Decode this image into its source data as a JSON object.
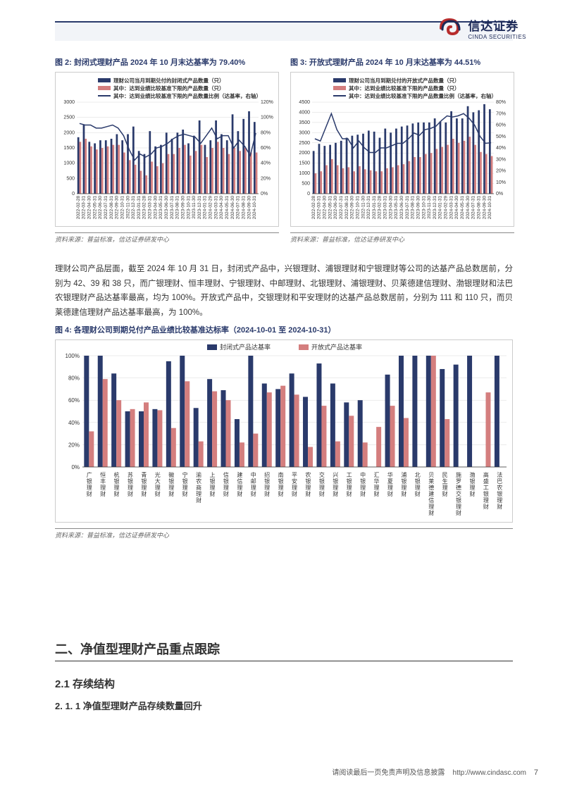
{
  "company": {
    "name_cn": "信达证券",
    "name_en": "CINDA SECURITIES"
  },
  "chart2": {
    "type": "bar-line-dual-axis",
    "title": "图 2: 封闭式理财产品 2024 年 10 月末达基率为 79.40%",
    "source": "资料来源：普益标准，信达证券研发中心",
    "legend": {
      "series1": "理财公司当月到期兑付的封闭式产品数量（只）",
      "series2": "其中：达到业绩比较基准下限的产品数量（只）",
      "series3": "其中：达到业绩比较基准下限的产品数量比例（达基率，右轴）"
    },
    "colors": {
      "bar1": "#2a3a6b",
      "bar2": "#d47e7e",
      "line": "#2a3a6b",
      "grid": "#d8d8d8",
      "axis_text": "#333333"
    },
    "y_left": {
      "min": 0,
      "max": 3000,
      "step": 500
    },
    "y_right": {
      "min": 0,
      "max": 120,
      "step": 20,
      "suffix": "%"
    },
    "x_labels": [
      "2022-02-28",
      "2022-03-31",
      "2022-04-30",
      "2022-05-31",
      "2022-06-30",
      "2022-07-31",
      "2022-08-31",
      "2022-09-30",
      "2022-10-31",
      "2022-11-30",
      "2022-12-31",
      "2023-01-31",
      "2023-02-28",
      "2023-03-31",
      "2023-04-30",
      "2023-05-31",
      "2023-06-30",
      "2023-07-31",
      "2023-08-31",
      "2023-09-30",
      "2023-10-31",
      "2023-11-30",
      "2023-12-31",
      "2024-01-31",
      "2024-02-29",
      "2024-03-31",
      "2024-04-30",
      "2024-05-31",
      "2024-06-30",
      "2024-07-31",
      "2024-08-31",
      "2024-09-30",
      "2024-10-31"
    ],
    "bar1_values": [
      1850,
      2250,
      1700,
      1650,
      1750,
      1750,
      1800,
      1950,
      1750,
      1950,
      2200,
      1400,
      1300,
      2050,
      1550,
      1600,
      2000,
      1800,
      2000,
      2100,
      1650,
      1900,
      2400,
      1600,
      1750,
      2400,
      1950,
      1750,
      2600,
      2050,
      2450,
      2700,
      2350
    ],
    "bar2_values": [
      1700,
      1800,
      1550,
      1450,
      1500,
      1550,
      1600,
      1600,
      1350,
      1100,
      950,
      750,
      600,
      1050,
      900,
      1000,
      1300,
      1300,
      1500,
      1600,
      1250,
      1400,
      1600,
      1200,
      1500,
      1700,
      1500,
      1300,
      1500,
      1400,
      1500,
      1350,
      1350
    ],
    "line_values": [
      92,
      90,
      90,
      86,
      86,
      88,
      90,
      86,
      76,
      58,
      44,
      52,
      48,
      52,
      60,
      62,
      66,
      72,
      76,
      78,
      76,
      74,
      66,
      76,
      86,
      72,
      76,
      76,
      60,
      70,
      62,
      50,
      79.4
    ],
    "font_size_axis": 7,
    "font_size_legend": 7.5,
    "bar_width": 0.35
  },
  "chart3": {
    "type": "bar-line-dual-axis",
    "title": "图 3: 开放式理财产品 2024 年 10 月末达基率为 44.51%",
    "source": "资料来源：普益标准，信达证券研发中心",
    "legend": {
      "series1": "理财公司当月到期兑付的开放式产品数量（只）",
      "series2": "其中：达到业绩比较基准下限的产品数量（只）",
      "series3": "其中：达到业绩比较基准下限的产品数量比例（达基率，右轴）"
    },
    "colors": {
      "bar1": "#2a3a6b",
      "bar2": "#d47e7e",
      "line": "#2a3a6b",
      "grid": "#d8d8d8",
      "axis_text": "#333333"
    },
    "y_left": {
      "min": 0,
      "max": 4500,
      "step": 500
    },
    "y_right": {
      "min": 0,
      "max": 80,
      "step": 10,
      "suffix": "%"
    },
    "x_labels": [
      "2022-02-28",
      "2022-03-31",
      "2022-04-30",
      "2022-05-31",
      "2022-06-30",
      "2022-07-31",
      "2022-08-31",
      "2022-09-30",
      "2022-10-31",
      "2022-11-30",
      "2022-12-31",
      "2023-01-31",
      "2023-02-28",
      "2023-03-31",
      "2023-04-30",
      "2023-05-31",
      "2023-06-30",
      "2023-07-31",
      "2023-08-31",
      "2023-09-30",
      "2023-10-31",
      "2023-11-30",
      "2023-12-31",
      "2024-01-31",
      "2024-02-29",
      "2024-03-31",
      "2024-04-30",
      "2024-05-31",
      "2024-06-30",
      "2024-07-31",
      "2024-08-31",
      "2024-09-30",
      "2024-10-31"
    ],
    "bar1_values": [
      2100,
      2450,
      2350,
      2400,
      2500,
      2600,
      2750,
      2850,
      2900,
      2950,
      3100,
      3050,
      2750,
      3200,
      3000,
      3200,
      3300,
      3350,
      3450,
      3500,
      3500,
      3500,
      3700,
      3550,
      3500,
      4050,
      3700,
      3700,
      4300,
      4000,
      4100,
      4400,
      4150
    ],
    "bar2_values": [
      1000,
      1100,
      1400,
      1700,
      1400,
      1250,
      1300,
      1100,
      1350,
      1200,
      1150,
      1100,
      1100,
      1250,
      1300,
      1400,
      1450,
      1600,
      1800,
      1800,
      1950,
      2000,
      2200,
      2300,
      2400,
      2700,
      2500,
      2600,
      2800,
      2400,
      2050,
      1950,
      1850
    ],
    "line_values": [
      48,
      46,
      58,
      70,
      56,
      48,
      48,
      40,
      46,
      40,
      36,
      36,
      40,
      40,
      42,
      44,
      44,
      48,
      53,
      51,
      56,
      57,
      59,
      64,
      68,
      67,
      68,
      70,
      66,
      60,
      50,
      44,
      44.51
    ],
    "font_size_axis": 7,
    "font_size_legend": 7.5,
    "bar_width": 0.35
  },
  "paragraph1": "理财公司产品层面，截至 2024 年 10 月 31 日，封闭式产品中，兴银理财、浦银理财和宁银理财等公司的达基产品总数居前，分别为 42、39 和 38 只，而广银理财、恒丰理财、宁银理财、中邮理财、北银理财、浦银理财、贝莱德建信理财、渤银理财和法巴农银理财产品达基率最高，均为 100%。开放式产品中，交银理财和平安理财的达基产品总数居前，分别为 111 和 110 只，而贝莱德建信理财产品达基率最高，为 100%。",
  "chart4": {
    "type": "grouped-bar",
    "title": "图 4: 各理财公司到期兑付产品业绩比较基准达标率（2024-10-01 至 2024-10-31）",
    "source": "资料来源：普益标准，信达证券研发中心",
    "legend": {
      "series1": "封闭式产品达基率",
      "series2": "开放式产品达基率"
    },
    "colors": {
      "bar1": "#2a3a6b",
      "bar2": "#d47e7e",
      "grid": "#d8d8d8",
      "axis_text": "#333333"
    },
    "y": {
      "min": 0,
      "max": 100,
      "step": 20,
      "suffix": "%"
    },
    "x_labels": [
      "广银理财",
      "恒丰理财",
      "杭银理财",
      "苏银理财",
      "青银理财",
      "光大理财",
      "徽银理财",
      "宁银理财",
      "渝农商理财",
      "上银理财",
      "信银理财",
      "建信理财",
      "中邮理财",
      "招银理财",
      "南银理财",
      "平安理财",
      "农银理财",
      "交银理财",
      "兴银理财",
      "工银理财",
      "中银理财",
      "汇华理财",
      "华夏理财",
      "浦银理财",
      "北银理财",
      "贝莱德建信理财",
      "民生理财",
      "施罗德交银理财",
      "渤银理财",
      "高盛工银理财",
      "法巴农银理财"
    ],
    "bar1_values": [
      100,
      100,
      84,
      50,
      50,
      52,
      95,
      100,
      53,
      79,
      69,
      43,
      100,
      75,
      70,
      84,
      63,
      93,
      75,
      58,
      60,
      null,
      83,
      100,
      100,
      100,
      88,
      92,
      100,
      null,
      100
    ],
    "bar2_values": [
      32,
      79,
      60,
      52,
      58,
      51,
      35,
      77,
      23,
      68,
      60,
      22,
      30,
      67,
      73,
      65,
      18,
      55,
      23,
      46,
      22,
      36,
      55,
      44,
      null,
      100,
      43,
      null,
      null,
      67,
      null
    ],
    "font_size_axis": 8,
    "font_size_legend": 9,
    "bar_width": 0.36
  },
  "headings": {
    "h1": "二、净值型理财产品重点跟踪",
    "h2": "2.1 存续结构",
    "h3": "2. 1. 1 净值型理财产品存续数量回升"
  },
  "footer": {
    "disclaimer": "请阅读最后一页免责声明及信息披露",
    "url": "http://www.cindasc.com",
    "page": "7"
  }
}
